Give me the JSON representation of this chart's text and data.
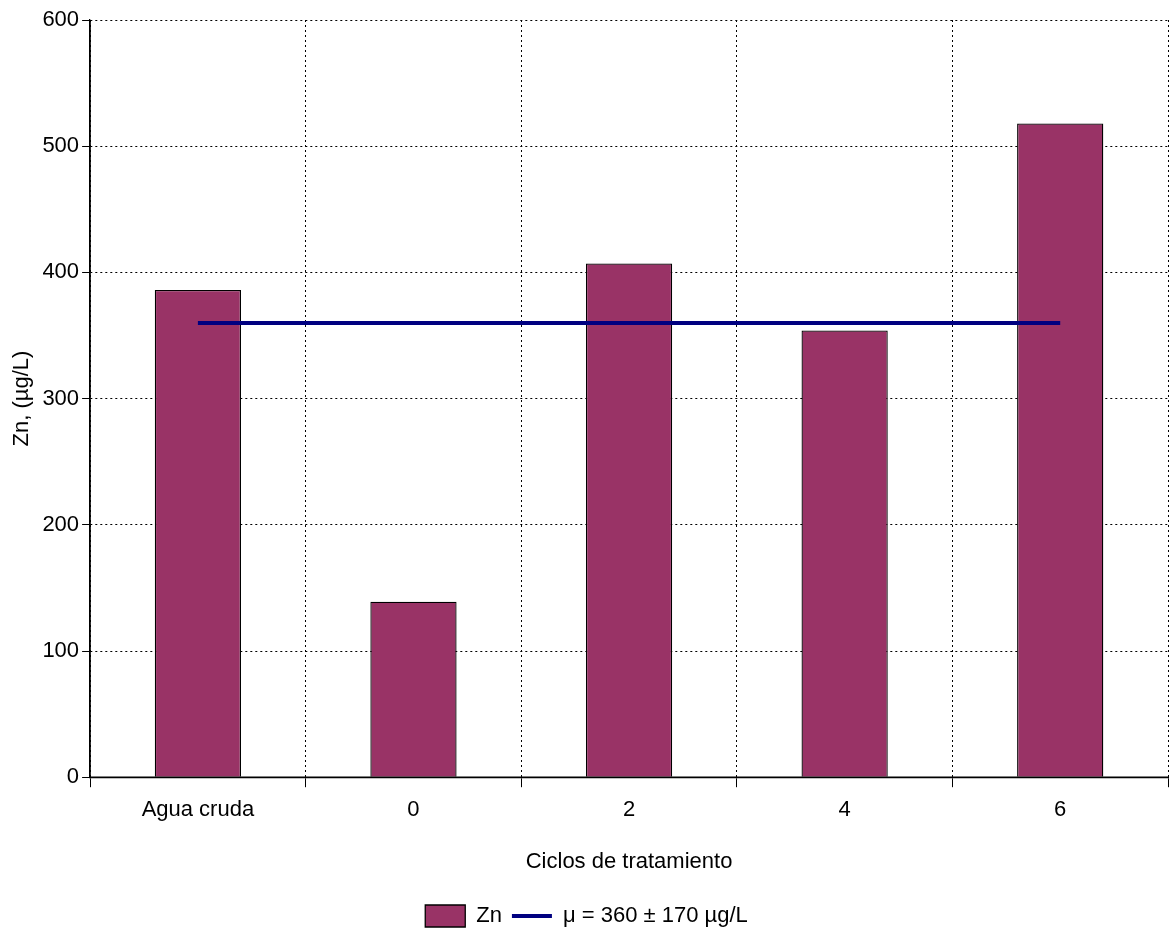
{
  "chart_data": {
    "type": "bar",
    "xlabel": "Ciclos de tratamiento",
    "ylabel": "Zn, (µg/L)",
    "categories": [
      "Agua cruda",
      "0",
      "2",
      "4",
      "6"
    ],
    "series": [
      {
        "name": "Zn",
        "color": "#993366",
        "values": [
          386,
          139,
          407,
          354,
          518
        ]
      },
      {
        "name": "μ = 360 ± 170 µg/L",
        "type": "line",
        "color": "#000080",
        "values": [
          360,
          360,
          360,
          360,
          360
        ]
      }
    ],
    "ylim": [
      0,
      600
    ],
    "yticks": [
      0,
      100,
      200,
      300,
      400,
      500,
      600
    ],
    "grid": true,
    "legend": "bottom",
    "marker": "none",
    "line_style": "solid"
  }
}
